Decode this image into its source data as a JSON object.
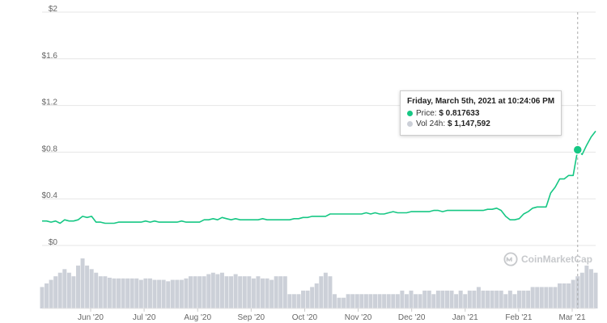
{
  "chart_data": {
    "type": "line",
    "ylabel_prefix": "$",
    "yticks": [
      "$2",
      "$1.6",
      "$1.2",
      "$0.8",
      "$0.4",
      "$0"
    ],
    "ytick_values": [
      2,
      1.6,
      1.2,
      0.8,
      0.4,
      0
    ],
    "ylim": [
      0,
      2
    ],
    "xticks": [
      "Jun '20",
      "Jul '20",
      "Aug '20",
      "Sep '20",
      "Oct '20",
      "Nov '20",
      "Dec '20",
      "Jan '21",
      "Feb '21",
      "Mar '21"
    ],
    "grid": true,
    "series": [
      {
        "key": "price",
        "values": [
          0.21,
          0.21,
          0.2,
          0.21,
          0.19,
          0.22,
          0.21,
          0.21,
          0.22,
          0.25,
          0.24,
          0.25,
          0.2,
          0.2,
          0.19,
          0.19,
          0.19,
          0.2,
          0.2,
          0.2,
          0.2,
          0.2,
          0.2,
          0.21,
          0.2,
          0.21,
          0.2,
          0.2,
          0.2,
          0.2,
          0.2,
          0.21,
          0.2,
          0.2,
          0.2,
          0.2,
          0.22,
          0.22,
          0.23,
          0.22,
          0.24,
          0.23,
          0.22,
          0.23,
          0.22,
          0.22,
          0.22,
          0.22,
          0.22,
          0.23,
          0.22,
          0.22,
          0.22,
          0.22,
          0.22,
          0.22,
          0.23,
          0.23,
          0.24,
          0.24,
          0.25,
          0.25,
          0.25,
          0.25,
          0.27,
          0.27,
          0.27,
          0.27,
          0.27,
          0.27,
          0.27,
          0.27,
          0.28,
          0.27,
          0.28,
          0.27,
          0.27,
          0.28,
          0.29,
          0.28,
          0.28,
          0.28,
          0.29,
          0.29,
          0.29,
          0.29,
          0.29,
          0.3,
          0.3,
          0.29,
          0.3,
          0.3,
          0.3,
          0.3,
          0.3,
          0.3,
          0.3,
          0.3,
          0.3,
          0.31,
          0.31,
          0.32,
          0.3,
          0.25,
          0.22,
          0.22,
          0.23,
          0.27,
          0.29,
          0.32,
          0.33,
          0.33,
          0.33,
          0.45,
          0.5,
          0.57,
          0.57,
          0.6,
          0.6,
          0.82,
          0.78,
          0.86,
          0.93,
          0.98
        ]
      },
      {
        "key": "volume",
        "values": [
          0.3,
          0.35,
          0.4,
          0.45,
          0.5,
          0.55,
          0.5,
          0.45,
          0.6,
          0.7,
          0.6,
          0.55,
          0.5,
          0.45,
          0.45,
          0.43,
          0.42,
          0.42,
          0.42,
          0.42,
          0.42,
          0.42,
          0.4,
          0.42,
          0.42,
          0.4,
          0.4,
          0.4,
          0.38,
          0.4,
          0.4,
          0.4,
          0.42,
          0.45,
          0.45,
          0.45,
          0.45,
          0.48,
          0.5,
          0.48,
          0.5,
          0.45,
          0.45,
          0.48,
          0.45,
          0.45,
          0.45,
          0.42,
          0.45,
          0.42,
          0.42,
          0.4,
          0.45,
          0.45,
          0.45,
          0.2,
          0.2,
          0.2,
          0.25,
          0.25,
          0.3,
          0.35,
          0.45,
          0.5,
          0.45,
          0.2,
          0.15,
          0.15,
          0.2,
          0.2,
          0.2,
          0.2,
          0.2,
          0.2,
          0.2,
          0.2,
          0.2,
          0.2,
          0.2,
          0.2,
          0.25,
          0.2,
          0.25,
          0.2,
          0.2,
          0.25,
          0.25,
          0.2,
          0.25,
          0.25,
          0.25,
          0.25,
          0.2,
          0.25,
          0.2,
          0.25,
          0.25,
          0.3,
          0.25,
          0.25,
          0.25,
          0.25,
          0.25,
          0.2,
          0.25,
          0.2,
          0.25,
          0.25,
          0.25,
          0.3,
          0.3,
          0.3,
          0.3,
          0.3,
          0.3,
          0.35,
          0.35,
          0.35,
          0.4,
          0.45,
          0.5,
          0.6,
          0.55,
          0.5
        ]
      }
    ],
    "colors": {
      "price_line": "#16c784",
      "volume_bar": "#ccd0d8",
      "crosshair": "#aaaaaa"
    },
    "highlight_index": 119
  },
  "tooltip": {
    "date": "Friday, March 5th, 2021 at 10:24:06 PM",
    "price_label": "Price:",
    "price_value": "$ 0.817633",
    "vol_label": "Vol 24h:",
    "vol_value": "$ 1,147,592"
  },
  "watermark": {
    "text": "CoinMarketCap",
    "icon": "coinmarketcap-logo-icon"
  }
}
